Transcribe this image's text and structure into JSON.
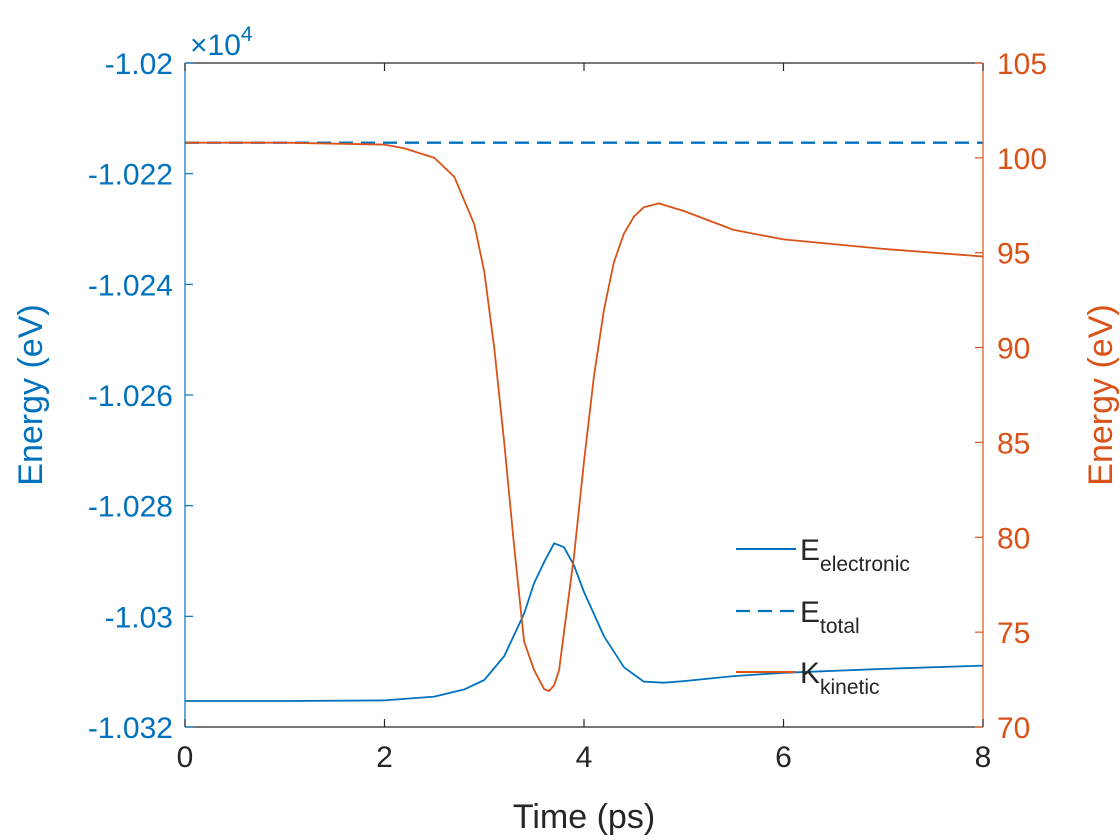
{
  "chart_data": {
    "type": "line",
    "xlabel": "Time (ps)",
    "ylabel_left": "Energy (eV)",
    "ylabel_right": "Energy (eV)",
    "left_axis_exponent": "×10",
    "left_axis_exponent_power": "4",
    "x_range": [
      0,
      8
    ],
    "x_ticks": [
      0,
      2,
      4,
      6,
      8
    ],
    "x_tick_labels": [
      "0",
      "2",
      "4",
      "6",
      "8"
    ],
    "y_left_range": [
      -10320,
      -10200
    ],
    "y_left_ticks": [
      -10320,
      -10300,
      -10280,
      -10260,
      -10240,
      -10220,
      -10200
    ],
    "y_left_tick_labels": [
      "-1.032",
      "-1.03",
      "-1.028",
      "-1.026",
      "-1.024",
      "-1.022",
      "-1.02"
    ],
    "y_right_range": [
      70,
      105
    ],
    "y_right_ticks": [
      70,
      75,
      80,
      85,
      90,
      95,
      100,
      105
    ],
    "y_right_tick_labels": [
      "70",
      "75",
      "80",
      "85",
      "90",
      "95",
      "100",
      "105"
    ],
    "grid": false,
    "legend_placement": "bottom-right",
    "series": [
      {
        "name": "E",
        "name_sub": "electronic",
        "axis": "left",
        "style": "solid",
        "color": "#0072BD",
        "x": [
          0,
          1,
          2,
          2.5,
          2.8,
          3.0,
          3.2,
          3.4,
          3.5,
          3.6,
          3.7,
          3.8,
          3.9,
          4.0,
          4.2,
          4.4,
          4.6,
          4.8,
          5.0,
          5.5,
          6.0,
          7.0,
          8.0
        ],
        "y": [
          -10315.3,
          -10315.3,
          -10315.2,
          -10314.5,
          -10313.2,
          -10311.5,
          -10307.2,
          -10299.5,
          -10294.0,
          -10290.2,
          -10286.8,
          -10287.5,
          -10290.8,
          -10295.6,
          -10303.6,
          -10309.2,
          -10311.8,
          -10312.0,
          -10311.7,
          -10310.8,
          -10310.2,
          -10309.5,
          -10308.9
        ]
      },
      {
        "name": "E",
        "name_sub": "total",
        "axis": "left",
        "style": "dashed",
        "color": "#0072BD",
        "x": [
          0,
          2,
          4,
          6,
          8
        ],
        "y": [
          -10214.4,
          -10214.4,
          -10214.4,
          -10214.4,
          -10214.4
        ]
      },
      {
        "name": "K",
        "name_sub": "kinetic",
        "axis": "right",
        "style": "solid",
        "color": "#D95319",
        "x": [
          0,
          1,
          2,
          2.2,
          2.5,
          2.7,
          2.9,
          3.0,
          3.1,
          3.2,
          3.3,
          3.4,
          3.5,
          3.55,
          3.6,
          3.65,
          3.7,
          3.75,
          3.8,
          3.9,
          4.0,
          4.1,
          4.2,
          4.3,
          4.4,
          4.5,
          4.6,
          4.75,
          5.0,
          5.5,
          6.0,
          7.0,
          8.0
        ],
        "y": [
          100.8,
          100.8,
          100.7,
          100.5,
          100.0,
          99.0,
          96.5,
          94.0,
          90.0,
          85.0,
          79.5,
          74.5,
          73.0,
          72.5,
          72.0,
          71.9,
          72.2,
          73.0,
          75.0,
          79.0,
          84.0,
          88.5,
          92.0,
          94.5,
          96.0,
          96.9,
          97.4,
          97.6,
          97.2,
          96.2,
          95.7,
          95.2,
          94.8
        ]
      }
    ]
  }
}
